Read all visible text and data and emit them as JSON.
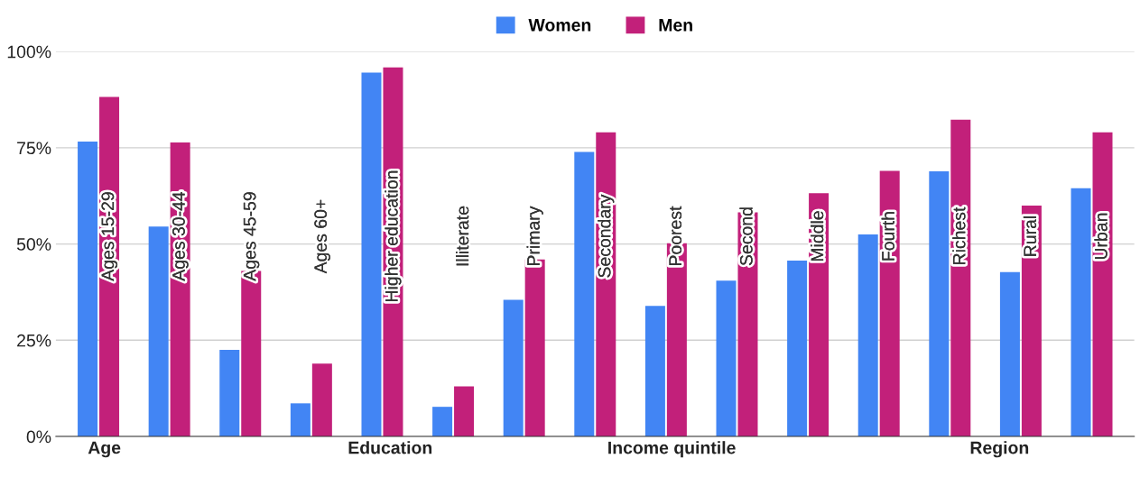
{
  "chart_data": {
    "type": "bar",
    "categories": [
      "Ages 15-29",
      "Ages 30-44",
      "Ages 45-59",
      "Ages 60+",
      "Higher education",
      "Illiterate",
      "Primary",
      "Secondary",
      "Poorest",
      "Second",
      "Middle",
      "Fourth",
      "Richest",
      "Rural",
      "Urban"
    ],
    "series": [
      {
        "name": "Women",
        "color": "#4285f4",
        "values": [
          76.6,
          54.5,
          22.5,
          8.6,
          94.5,
          7.7,
          35.5,
          73.9,
          33.9,
          40.5,
          45.7,
          52.5,
          68.9,
          42.7,
          64.5
        ]
      },
      {
        "name": "Men",
        "color": "#c2207a",
        "values": [
          88.2,
          76.4,
          43,
          18.9,
          95.9,
          13,
          46,
          79,
          50.2,
          58.2,
          63.2,
          69,
          82.3,
          60,
          79
        ]
      }
    ],
    "ylim": [
      0,
      100
    ],
    "yticks": [
      {
        "value": 0,
        "label": "0%"
      },
      {
        "value": 25,
        "label": "25%"
      },
      {
        "value": 50,
        "label": "50%"
      },
      {
        "value": 75,
        "label": "75%"
      },
      {
        "value": 100,
        "label": "100%"
      }
    ],
    "grid": "y",
    "legend": "top",
    "tick_labels": "y",
    "annotations": [
      "Age",
      "Education",
      "Income quintile",
      "Region"
    ]
  }
}
